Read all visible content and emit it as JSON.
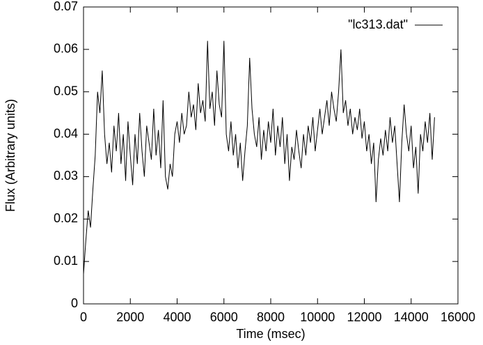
{
  "chart_data": {
    "type": "line",
    "x_label": "Time (msec)",
    "y_label": "Flux (Arbitrary units)",
    "x": [
      0,
      100,
      200,
      300,
      400,
      500,
      600,
      700,
      800,
      900,
      1000,
      1100,
      1200,
      1300,
      1400,
      1500,
      1600,
      1700,
      1800,
      1900,
      2000,
      2100,
      2200,
      2300,
      2400,
      2500,
      2600,
      2700,
      2800,
      2900,
      3000,
      3100,
      3200,
      3300,
      3400,
      3500,
      3600,
      3700,
      3800,
      3900,
      4000,
      4100,
      4200,
      4300,
      4400,
      4500,
      4600,
      4700,
      4800,
      4900,
      5000,
      5100,
      5200,
      5300,
      5400,
      5500,
      5600,
      5700,
      5800,
      5900,
      6000,
      6100,
      6200,
      6300,
      6400,
      6500,
      6600,
      6700,
      6800,
      6900,
      7000,
      7100,
      7200,
      7300,
      7400,
      7500,
      7600,
      7700,
      7800,
      7900,
      8000,
      8100,
      8200,
      8300,
      8400,
      8500,
      8600,
      8700,
      8800,
      8900,
      9000,
      9100,
      9200,
      9300,
      9400,
      9500,
      9600,
      9700,
      9800,
      9900,
      10000,
      10100,
      10200,
      10300,
      10400,
      10500,
      10600,
      10700,
      10800,
      10900,
      11000,
      11100,
      11200,
      11300,
      11400,
      11500,
      11600,
      11700,
      11800,
      11900,
      12000,
      12100,
      12200,
      12300,
      12400,
      12500,
      12600,
      12700,
      12800,
      12900,
      13000,
      13100,
      13200,
      13300,
      13400,
      13500,
      13600,
      13700,
      13800,
      13900,
      14000,
      14100,
      14200,
      14300,
      14400,
      14500,
      14600,
      14700,
      14800,
      14900,
      15000
    ],
    "series": [
      {
        "name": "\"lc313.dat\"",
        "color": "#000000",
        "values": [
          0.007,
          0.015,
          0.022,
          0.018,
          0.027,
          0.035,
          0.05,
          0.045,
          0.055,
          0.04,
          0.033,
          0.038,
          0.031,
          0.042,
          0.036,
          0.045,
          0.033,
          0.04,
          0.029,
          0.043,
          0.035,
          0.028,
          0.04,
          0.033,
          0.045,
          0.036,
          0.03,
          0.042,
          0.038,
          0.034,
          0.046,
          0.035,
          0.041,
          0.032,
          0.048,
          0.03,
          0.027,
          0.033,
          0.03,
          0.04,
          0.043,
          0.038,
          0.045,
          0.04,
          0.042,
          0.05,
          0.044,
          0.047,
          0.041,
          0.052,
          0.045,
          0.048,
          0.043,
          0.062,
          0.046,
          0.05,
          0.042,
          0.055,
          0.047,
          0.044,
          0.062,
          0.04,
          0.036,
          0.043,
          0.035,
          0.04,
          0.032,
          0.038,
          0.029,
          0.036,
          0.042,
          0.058,
          0.046,
          0.04,
          0.037,
          0.044,
          0.034,
          0.041,
          0.036,
          0.043,
          0.038,
          0.046,
          0.035,
          0.042,
          0.037,
          0.044,
          0.033,
          0.04,
          0.029,
          0.037,
          0.034,
          0.041,
          0.036,
          0.032,
          0.04,
          0.035,
          0.042,
          0.038,
          0.044,
          0.036,
          0.041,
          0.046,
          0.04,
          0.044,
          0.048,
          0.042,
          0.05,
          0.046,
          0.043,
          0.05,
          0.06,
          0.045,
          0.048,
          0.042,
          0.046,
          0.04,
          0.044,
          0.041,
          0.046,
          0.039,
          0.043,
          0.036,
          0.04,
          0.033,
          0.038,
          0.024,
          0.034,
          0.039,
          0.035,
          0.041,
          0.036,
          0.044,
          0.038,
          0.042,
          0.033,
          0.024,
          0.038,
          0.047,
          0.04,
          0.036,
          0.042,
          0.032,
          0.037,
          0.026,
          0.04,
          0.036,
          0.043,
          0.038,
          0.045,
          0.034,
          0.044
        ]
      }
    ],
    "xlim": [
      0,
      16000
    ],
    "xticks": [
      0,
      2000,
      4000,
      6000,
      8000,
      10000,
      12000,
      14000,
      16000
    ],
    "ylim": [
      0,
      0.07
    ],
    "yticks": [
      0,
      0.01,
      0.02,
      0.03,
      0.04,
      0.05,
      0.06,
      0.07
    ],
    "legend": "upper right"
  }
}
